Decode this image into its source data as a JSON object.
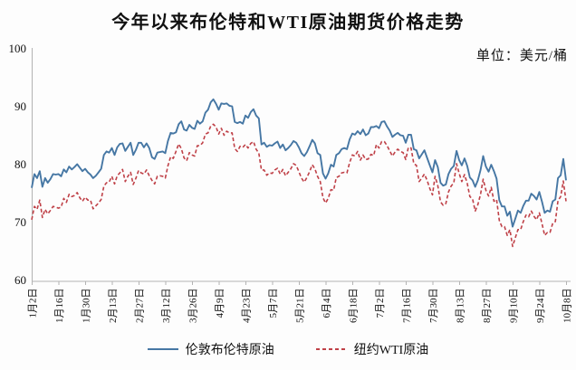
{
  "chart_data": {
    "type": "line",
    "title": "今年以来布伦特和WTI原油期货价格走势",
    "unit_label": "单位：美元/桶",
    "xlabel": "",
    "ylabel": "",
    "ylim": [
      60,
      100
    ],
    "y_ticks": [
      60,
      70,
      80,
      90,
      100
    ],
    "grid": false,
    "legend_position": "bottom",
    "x_tick_labels": [
      "1月2日",
      "1月16日",
      "1月30日",
      "2月13日",
      "2月27日",
      "3月12日",
      "3月26日",
      "4月9日",
      "4月23日",
      "5月7日",
      "5月21日",
      "6月4日",
      "6月18日",
      "7月2日",
      "7月16日",
      "7月30日",
      "8月13日",
      "8月27日",
      "9月10日",
      "9月24日",
      "10月8日"
    ],
    "points_per_tick": 10,
    "n_points": 201,
    "axis_color": "#b3b3b3",
    "series": [
      {
        "name": "伦敦布伦特原油",
        "color": "#4677a4",
        "line_style": "solid",
        "values": [
          75.9,
          78.3,
          77.6,
          78.8,
          76.1,
          77.6,
          76.8,
          77.4,
          78.3,
          78.2,
          78.3,
          77.9,
          79.1,
          78.6,
          79.6,
          79.1,
          79.5,
          80.0,
          79.4,
          78.8,
          79.2,
          78.6,
          78.2,
          77.6,
          78.0,
          78.6,
          79.2,
          81.6,
          82.2,
          82.0,
          82.8,
          81.6,
          82.9,
          83.5,
          83.6,
          82.3,
          83.0,
          83.7,
          81.6,
          82.5,
          83.7,
          83.7,
          82.9,
          83.6,
          82.8,
          81.2,
          80.9,
          82.0,
          82.1,
          82.2,
          81.9,
          84.0,
          85.4,
          85.3,
          85.5,
          86.9,
          87.4,
          86.0,
          85.8,
          86.8,
          86.3,
          86.1,
          87.5,
          87.0,
          87.4,
          88.9,
          89.4,
          90.7,
          91.2,
          90.4,
          89.4,
          90.5,
          90.4,
          90.5,
          90.1,
          90.0,
          87.3,
          87.1,
          87.3,
          87.0,
          88.4,
          88.0,
          89.0,
          89.5,
          88.4,
          87.9,
          83.4,
          83.7,
          83.0,
          83.3,
          83.2,
          83.6,
          83.9,
          82.8,
          83.4,
          82.4,
          82.8,
          83.3,
          84.0,
          83.7,
          82.9,
          81.9,
          81.4,
          82.1,
          83.1,
          84.2,
          83.6,
          81.9,
          81.6,
          78.4,
          77.5,
          78.4,
          79.9,
          79.6,
          81.6,
          81.9,
          82.6,
          82.8,
          82.6,
          84.3,
          85.3,
          85.1,
          85.7,
          85.2,
          86.0,
          85.0,
          85.3,
          86.4,
          86.4,
          86.6,
          86.2,
          87.3,
          87.4,
          86.5,
          85.8,
          84.7,
          85.1,
          85.4,
          85.0,
          84.9,
          83.7,
          85.1,
          85.1,
          82.6,
          82.4,
          81.0,
          81.7,
          82.4,
          81.1,
          79.8,
          78.6,
          80.7,
          79.5,
          76.8,
          76.3,
          76.5,
          78.3,
          79.2,
          79.7,
          82.3,
          80.7,
          79.8,
          81.0,
          79.7,
          77.7,
          77.2,
          76.1,
          77.2,
          79.0,
          81.4,
          79.6,
          78.7,
          79.9,
          78.8,
          77.5,
          73.8,
          72.7,
          72.7,
          71.1,
          71.8,
          69.2,
          70.6,
          72.0,
          71.6,
          72.8,
          73.7,
          73.7,
          74.9,
          74.5,
          73.9,
          75.2,
          73.5,
          71.6,
          72.0,
          71.8,
          73.6,
          73.9,
          77.6,
          78.1,
          80.9,
          77.2
        ]
      },
      {
        "name": "纽约WTI原油",
        "color": "#bf4047",
        "line_style": "dashed",
        "values": [
          70.4,
          72.7,
          72.2,
          73.8,
          70.8,
          72.2,
          71.4,
          72.0,
          72.7,
          72.6,
          72.4,
          72.6,
          74.1,
          73.4,
          74.8,
          74.4,
          74.6,
          75.1,
          74.2,
          73.6,
          74.3,
          73.8,
          73.8,
          72.3,
          72.8,
          73.3,
          73.9,
          76.2,
          76.8,
          76.9,
          77.9,
          76.6,
          78.0,
          78.5,
          79.1,
          77.0,
          77.9,
          78.6,
          76.5,
          77.6,
          78.9,
          78.5,
          78.3,
          79.0,
          78.0,
          77.2,
          76.6,
          77.9,
          78.0,
          77.9,
          77.6,
          79.7,
          81.3,
          81.0,
          82.2,
          83.5,
          82.7,
          81.1,
          80.6,
          82.0,
          81.6,
          81.4,
          83.2,
          83.2,
          83.7,
          85.2,
          85.4,
          86.6,
          86.9,
          86.4,
          85.2,
          86.2,
          85.0,
          85.7,
          85.4,
          85.4,
          82.7,
          82.2,
          83.1,
          82.9,
          83.4,
          82.8,
          83.6,
          83.9,
          82.6,
          81.9,
          79.0,
          79.0,
          78.1,
          78.5,
          78.4,
          79.0,
          79.3,
          78.3,
          79.1,
          78.0,
          78.6,
          79.2,
          80.1,
          79.8,
          78.7,
          77.6,
          76.9,
          77.7,
          78.7,
          79.9,
          79.2,
          77.9,
          77.0,
          74.2,
          73.3,
          74.1,
          75.6,
          75.5,
          77.7,
          77.9,
          78.5,
          78.6,
          78.5,
          80.3,
          81.6,
          81.4,
          82.2,
          80.7,
          81.6,
          80.8,
          80.9,
          81.7,
          81.5,
          83.4,
          82.8,
          83.9,
          83.9,
          83.2,
          82.3,
          81.4,
          82.1,
          82.6,
          82.2,
          82.0,
          80.8,
          82.9,
          82.8,
          80.1,
          79.8,
          77.0,
          77.6,
          78.3,
          77.2,
          75.8,
          74.7,
          77.9,
          76.3,
          73.5,
          72.9,
          73.2,
          75.2,
          76.2,
          76.8,
          80.1,
          78.4,
          77.0,
          78.2,
          76.7,
          74.4,
          74.0,
          71.9,
          73.0,
          74.8,
          77.4,
          75.5,
          74.5,
          76.0,
          73.6,
          73.9,
          70.3,
          69.2,
          69.2,
          67.7,
          68.7,
          65.8,
          67.3,
          68.7,
          68.7,
          70.1,
          71.2,
          70.9,
          71.9,
          71.0,
          70.4,
          71.6,
          69.7,
          67.7,
          68.2,
          68.2,
          69.8,
          70.1,
          73.7,
          74.4,
          77.1,
          73.6
        ]
      }
    ]
  }
}
